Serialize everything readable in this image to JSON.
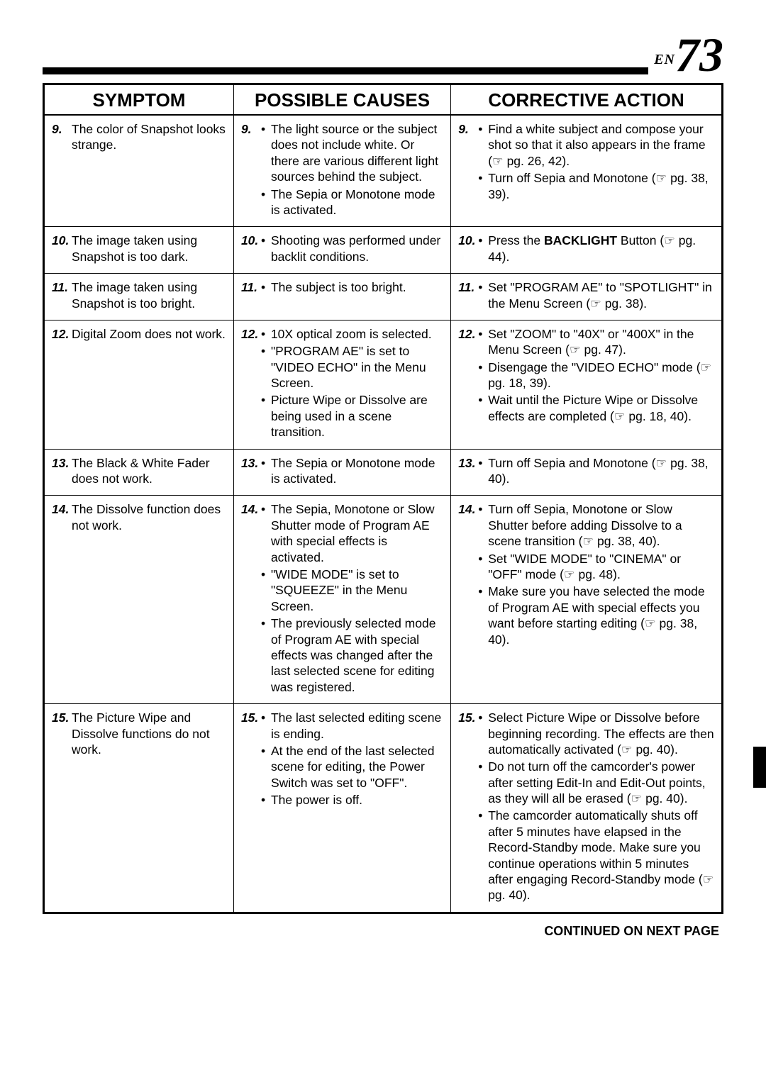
{
  "page": {
    "lang_label": "EN",
    "number": "73",
    "footer": "CONTINUED ON NEXT PAGE"
  },
  "ref_glyph": "☞",
  "headers": {
    "symptom": "SYMPTOM",
    "causes": "POSSIBLE CAUSES",
    "action": "CORRECTIVE ACTION"
  },
  "col_widths_pct": [
    28,
    32,
    40
  ],
  "rows": [
    {
      "n": "9.",
      "symptom": "The color of Snapshot looks strange.",
      "causes": [
        "The light source or the subject does not include white. Or there are various different light sources behind the subject.",
        "The Sepia or Monotone mode is activated."
      ],
      "actions": [
        "Find a white subject and compose your shot so that it also appears in the frame (☞ pg. 26, 42).",
        "Turn off Sepia and Monotone (☞ pg. 38, 39)."
      ]
    },
    {
      "n": "10.",
      "symptom": "The image taken using Snapshot is too dark.",
      "causes": [
        "Shooting was performed under backlit conditions."
      ],
      "actions": [
        "Press the <b>BACKLIGHT</b> Button (☞ pg. 44)."
      ]
    },
    {
      "n": "11.",
      "symptom": "The image taken using Snapshot is too bright.",
      "causes": [
        "The subject is too bright."
      ],
      "actions": [
        "Set \"PROGRAM AE\" to \"SPOTLIGHT\" in the Menu Screen (☞ pg. 38)."
      ]
    },
    {
      "n": "12.",
      "symptom": "Digital Zoom does not work.",
      "causes": [
        "10X optical zoom is selected.",
        "\"PROGRAM AE\" is set to \"VIDEO ECHO\" in the Menu Screen.",
        "Picture Wipe or Dissolve are being used in a scene transition."
      ],
      "actions": [
        "Set \"ZOOM\" to \"40X\" or \"400X\" in the Menu Screen (☞ pg. 47).",
        "Disengage the \"VIDEO ECHO\" mode (☞ pg. 18, 39).",
        "Wait until the Picture Wipe or Dissolve effects are completed (☞ pg. 18, 40)."
      ]
    },
    {
      "n": "13.",
      "symptom": "The Black & White Fader does not work.",
      "causes": [
        "The Sepia or Monotone mode is activated."
      ],
      "actions": [
        "Turn off Sepia and Monotone (☞ pg. 38, 40)."
      ]
    },
    {
      "n": "14.",
      "symptom": "The Dissolve function does not work.",
      "causes": [
        "The Sepia, Monotone or Slow Shutter mode of Program AE with special effects is activated.",
        "\"WIDE MODE\" is set to \"SQUEEZE\" in the Menu Screen.",
        "The previously selected mode of Program AE with special effects was changed after the last selected scene for editing was registered."
      ],
      "actions": [
        "Turn off Sepia, Monotone or Slow Shutter before adding Dissolve to a scene transition (☞ pg. 38, 40).",
        "Set \"WIDE MODE\" to \"CINEMA\" or \"OFF\" mode (☞ pg. 48).",
        "Make sure you have selected the mode of Program AE with special effects you want before starting editing (☞ pg. 38, 40)."
      ]
    },
    {
      "n": "15.",
      "symptom": "The Picture Wipe and Dissolve functions do not work.",
      "causes": [
        "The last selected editing scene is ending.",
        "At the end of the last selected scene for editing, the Power Switch was set to \"OFF\".",
        "The power is off."
      ],
      "actions": [
        "Select Picture Wipe or Dissolve before beginning recording. The effects are then automatically activated (☞ pg. 40).",
        "Do not turn off the camcorder's power after setting Edit-In and Edit-Out points, as they will all be erased (☞ pg. 40).",
        "The camcorder automatically shuts off after 5 minutes have elapsed in the Record-Standby mode. Make sure you continue operations within 5 minutes after engaging Record-Standby mode (☞ pg. 40)."
      ]
    }
  ]
}
